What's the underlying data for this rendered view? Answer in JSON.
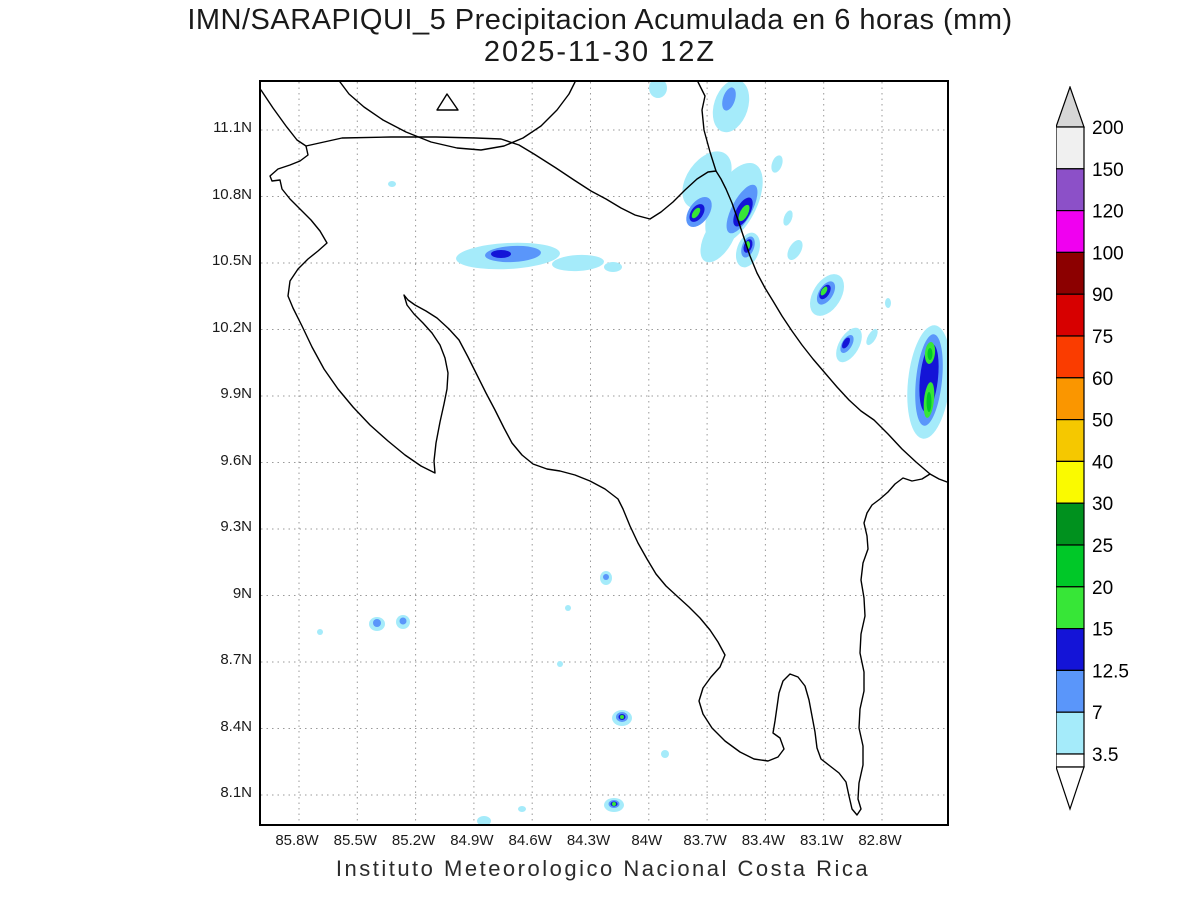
{
  "title": {
    "line1": "IMN/SARAPIQUI_5 Precipitacion Acumulada en 6 horas (mm)",
    "line2": "2025-11-30 12Z"
  },
  "footer": {
    "caption": "Instituto Meteorologico Nacional Costa Rica"
  },
  "axes": {
    "lat_labels": [
      "11.1N",
      "10.8N",
      "10.5N",
      "10.2N",
      "9.9N",
      "9.6N",
      "9.3N",
      "9N",
      "8.7N",
      "8.4N",
      "8.1N"
    ],
    "lon_labels": [
      "85.8W",
      "85.5W",
      "85.2W",
      "84.9W",
      "84.6W",
      "84.3W",
      "84W",
      "83.7W",
      "83.4W",
      "83.1W",
      "82.8W"
    ]
  },
  "colorbar": {
    "unit": "mm",
    "bands_top_to_bottom": [
      {
        "top_label": "200",
        "color": "#f0f0f0"
      },
      {
        "top_label": "150",
        "color": "#8c50c8"
      },
      {
        "top_label": "120",
        "color": "#f000f0"
      },
      {
        "top_label": "100",
        "color": "#8c0000"
      },
      {
        "top_label": "90",
        "color": "#d70000"
      },
      {
        "top_label": "75",
        "color": "#fa3c00"
      },
      {
        "top_label": "60",
        "color": "#fa9600"
      },
      {
        "top_label": "50",
        "color": "#f5c800"
      },
      {
        "top_label": "40",
        "color": "#fafa00"
      },
      {
        "top_label": "30",
        "color": "#00911e"
      },
      {
        "top_label": "25",
        "color": "#00c828"
      },
      {
        "top_label": "20",
        "color": "#37e637"
      },
      {
        "top_label": "15",
        "color": "#1414d7"
      },
      {
        "top_label": "12.5",
        "color": "#5a96fa"
      },
      {
        "top_label": "7",
        "color": "#a5ebfa"
      }
    ],
    "bottom_label": "3.5",
    "arrow_top_color": "#d6d6d6",
    "arrow_bottom_color": "#ffffff"
  },
  "map": {
    "palette": {
      "light": "#a5ebfa",
      "moderate": "#5a96fa",
      "heavy": "#1414d7",
      "green": "#37e637",
      "green_dark": "#00c828"
    }
  }
}
